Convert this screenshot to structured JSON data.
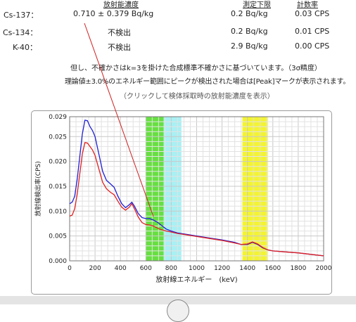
{
  "headers": {
    "activity": "放射能濃度",
    "detection_limit": "測定下限",
    "count_rate": "計数率"
  },
  "rows": [
    {
      "nuclide": "Cs-137：",
      "activity": "0.710  ±  0.379  Bq/kg",
      "limit": "0.2  Bq/kg",
      "cps": "0.03 CPS"
    },
    {
      "nuclide": "Cs-134：",
      "activity": "不検出",
      "limit": "0.2  Bq/kg",
      "cps": "0.01 CPS"
    },
    {
      "nuclide": "K-40：",
      "activity": "不検出",
      "limit": "2.9  Bq/kg",
      "cps": "0.00 CPS"
    }
  ],
  "notes": {
    "line1": "但し、不確かさはk=3を掛けた合成標準不確かさに基づいています。（3σ精度）",
    "line2": "理論値±3.0%のエネルギー範囲にピークが検出された場合は[Peak]マークが表示されます。",
    "click": "（クリックして検体採取時の放射能濃度を表示）"
  },
  "colors": {
    "series1": "#1f1fd8",
    "series2": "#e02020",
    "band_green": "#66e040",
    "band_cyan": "#a8f0f4",
    "band_yellow": "#f4f430",
    "pointer": "#d02020"
  },
  "chart_data": {
    "type": "line",
    "title": "",
    "xlabel": "放射線エネルギー　(keV)",
    "ylabel": "放射線検出率(CPS)",
    "xlim": [
      0,
      2000
    ],
    "ylim": [
      0,
      0.029
    ],
    "xticks": [
      0,
      200,
      400,
      600,
      800,
      1000,
      1200,
      1400,
      1600,
      1800,
      2000
    ],
    "yticks": [
      0.0,
      0.005,
      0.01,
      0.015,
      0.02,
      0.025,
      0.029
    ],
    "ytick_labels": [
      "0.000",
      "0.005",
      "0.010",
      "0.015",
      "0.020",
      "0.025",
      "0.029"
    ],
    "grid": true,
    "bands": [
      {
        "from": 600,
        "to": 740,
        "color": "#66e040"
      },
      {
        "from": 740,
        "to": 880,
        "color": "#a8f0f4"
      },
      {
        "from": 1360,
        "to": 1560,
        "color": "#f4f430"
      }
    ],
    "series": [
      {
        "color": "#1f1fd8",
        "x": [
          0,
          20,
          40,
          60,
          80,
          100,
          120,
          140,
          160,
          180,
          200,
          230,
          260,
          290,
          320,
          350,
          380,
          410,
          440,
          470,
          490,
          510,
          540,
          570,
          600,
          630,
          660,
          690,
          720,
          760,
          800,
          850,
          900,
          1000,
          1100,
          1200,
          1300,
          1350,
          1400,
          1440,
          1480,
          1520,
          1560,
          1600,
          1700,
          1800,
          1900,
          2000
        ],
        "y": [
          0.0115,
          0.0118,
          0.013,
          0.0165,
          0.021,
          0.0255,
          0.0283,
          0.0282,
          0.027,
          0.0262,
          0.025,
          0.0215,
          0.018,
          0.0162,
          0.0155,
          0.0148,
          0.013,
          0.0115,
          0.0107,
          0.0113,
          0.0118,
          0.011,
          0.0095,
          0.0087,
          0.0085,
          0.0085,
          0.0082,
          0.0078,
          0.0072,
          0.0064,
          0.006,
          0.0056,
          0.0054,
          0.005,
          0.0046,
          0.0042,
          0.0037,
          0.0033,
          0.0033,
          0.0037,
          0.0033,
          0.0026,
          0.0022,
          0.002,
          0.0018,
          0.0016,
          0.0013,
          0.001
        ]
      },
      {
        "color": "#e02020",
        "x": [
          0,
          20,
          40,
          60,
          80,
          100,
          120,
          140,
          160,
          180,
          200,
          230,
          260,
          290,
          320,
          350,
          380,
          410,
          440,
          470,
          490,
          510,
          540,
          570,
          600,
          630,
          660,
          690,
          720,
          760,
          800,
          850,
          900,
          1000,
          1100,
          1200,
          1300,
          1350,
          1400,
          1440,
          1480,
          1520,
          1560,
          1600,
          1700,
          1800,
          1900,
          2000
        ],
        "y": [
          0.009,
          0.0092,
          0.0105,
          0.0135,
          0.0175,
          0.0215,
          0.0238,
          0.0237,
          0.023,
          0.0223,
          0.0212,
          0.0185,
          0.0158,
          0.0145,
          0.0138,
          0.0133,
          0.012,
          0.0108,
          0.0102,
          0.0108,
          0.0115,
          0.0105,
          0.0088,
          0.0077,
          0.0073,
          0.0072,
          0.007,
          0.0066,
          0.0063,
          0.006,
          0.0058,
          0.0055,
          0.0053,
          0.0049,
          0.0045,
          0.0041,
          0.0036,
          0.0033,
          0.0034,
          0.0038,
          0.0034,
          0.0027,
          0.0022,
          0.002,
          0.0018,
          0.0016,
          0.0013,
          0.001
        ]
      }
    ]
  }
}
